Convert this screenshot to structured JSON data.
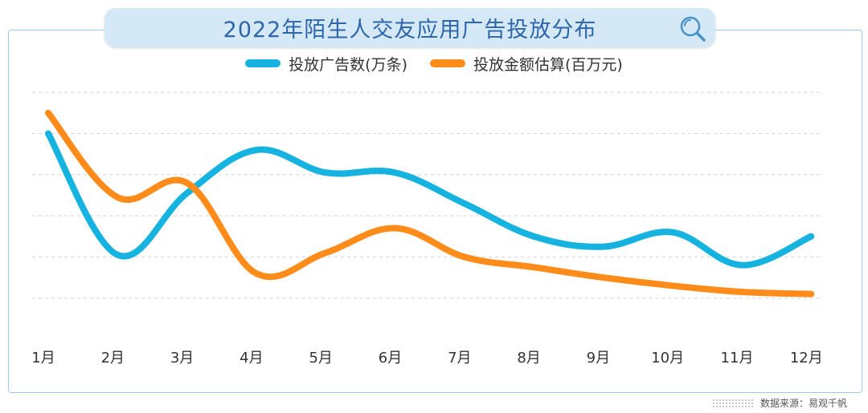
{
  "title": "2022年陌生人交友应用广告投放分布",
  "source_label": "数据来源：易观千帆",
  "colors": {
    "series_1": "#17b3e0",
    "series_2": "#ff8c1a",
    "grid": "#d5d5d5",
    "title_text": "#2d66a9",
    "title_bg": "#d4e8f6"
  },
  "legend": [
    {
      "label": "投放广告数(万条)",
      "color": "#17b3e0"
    },
    {
      "label": "投放金额估算(百万元)",
      "color": "#ff8c1a"
    }
  ],
  "chart_data": {
    "type": "line",
    "title": "2022年陌生人交友应用广告投放分布",
    "categories": [
      "1月",
      "2月",
      "3月",
      "4月",
      "5月",
      "6月",
      "7月",
      "8月",
      "9月",
      "10月",
      "11月",
      "12月"
    ],
    "ylim": [
      0,
      6
    ],
    "grid": true,
    "smooth": true,
    "legend_position": "top-center",
    "series": [
      {
        "name": "投放广告数(万条)",
        "color": "#17b3e0",
        "values": [
          5.0,
          2.05,
          3.55,
          4.6,
          4.05,
          4.05,
          3.3,
          2.5,
          2.25,
          2.6,
          1.8,
          2.5
        ]
      },
      {
        "name": "投放金额估算(百万元)",
        "color": "#ff8c1a",
        "values": [
          5.5,
          3.45,
          3.8,
          1.6,
          2.1,
          2.7,
          2.0,
          1.75,
          1.5,
          1.3,
          1.15,
          1.1
        ]
      }
    ]
  }
}
